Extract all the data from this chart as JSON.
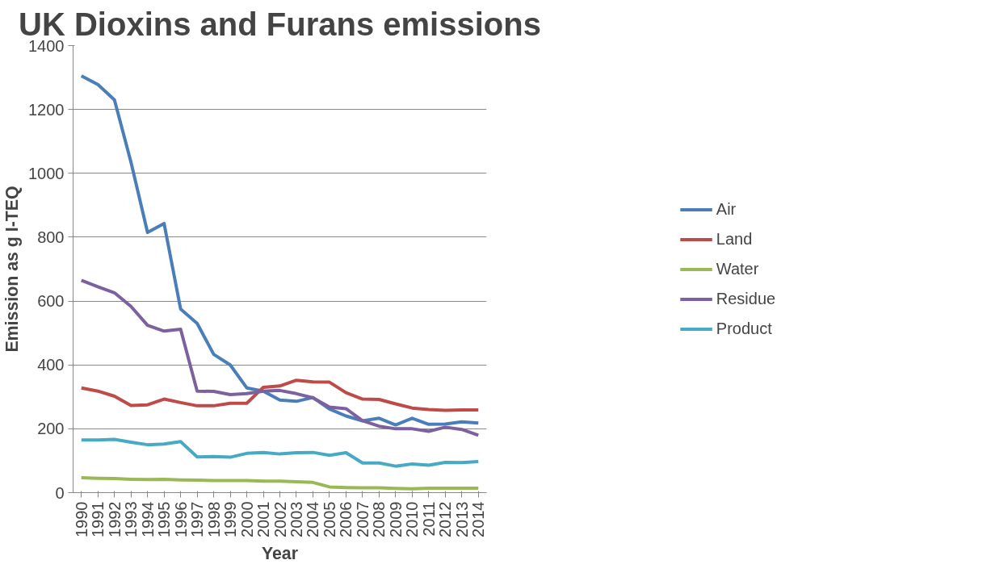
{
  "chart_data": {
    "type": "line",
    "title": "UK Dioxins and Furans emissions",
    "xlabel": "Year",
    "ylabel": "Emission as g I-TEQ",
    "categories": [
      "1990",
      "1991",
      "1992",
      "1993",
      "1994",
      "1995",
      "1996",
      "1997",
      "1998",
      "1999",
      "2000",
      "2001",
      "2002",
      "2003",
      "2004",
      "2005",
      "2006",
      "2007",
      "2008",
      "2009",
      "2010",
      "2011",
      "2012",
      "2013",
      "2014"
    ],
    "ylim": [
      0,
      1400
    ],
    "yticks": [
      0,
      200,
      400,
      600,
      800,
      1000,
      1200,
      1400
    ],
    "grid": "y",
    "legend": "right",
    "marker": "none",
    "line_style": "solid",
    "series": [
      {
        "name": "Air",
        "color": "#4a7ebb",
        "values": [
          1305,
          1278,
          1230,
          1035,
          815,
          843,
          575,
          530,
          433,
          400,
          328,
          318,
          290,
          286,
          298,
          262,
          240,
          225,
          233,
          212,
          233,
          214,
          215,
          222,
          218
        ]
      },
      {
        "name": "Land",
        "color": "#be4b48",
        "values": [
          328,
          318,
          302,
          273,
          275,
          293,
          282,
          272,
          272,
          280,
          280,
          330,
          334,
          352,
          347,
          346,
          313,
          293,
          292,
          278,
          265,
          260,
          258,
          259,
          259
        ]
      },
      {
        "name": "Water",
        "color": "#98b954",
        "values": [
          47,
          45,
          44,
          42,
          41,
          42,
          40,
          39,
          38,
          38,
          38,
          36,
          36,
          34,
          32,
          18,
          16,
          15,
          15,
          13,
          12,
          14,
          14,
          14,
          14
        ]
      },
      {
        "name": "Residue",
        "color": "#7d60a0",
        "values": [
          665,
          645,
          626,
          583,
          524,
          506,
          512,
          318,
          317,
          307,
          310,
          318,
          320,
          310,
          297,
          268,
          263,
          225,
          208,
          200,
          200,
          192,
          205,
          198,
          180
        ]
      },
      {
        "name": "Product",
        "color": "#46aac5",
        "values": [
          165,
          165,
          167,
          158,
          150,
          152,
          160,
          112,
          113,
          111,
          123,
          126,
          121,
          125,
          126,
          117,
          125,
          93,
          93,
          83,
          90,
          86,
          95,
          94,
          97
        ]
      }
    ]
  }
}
